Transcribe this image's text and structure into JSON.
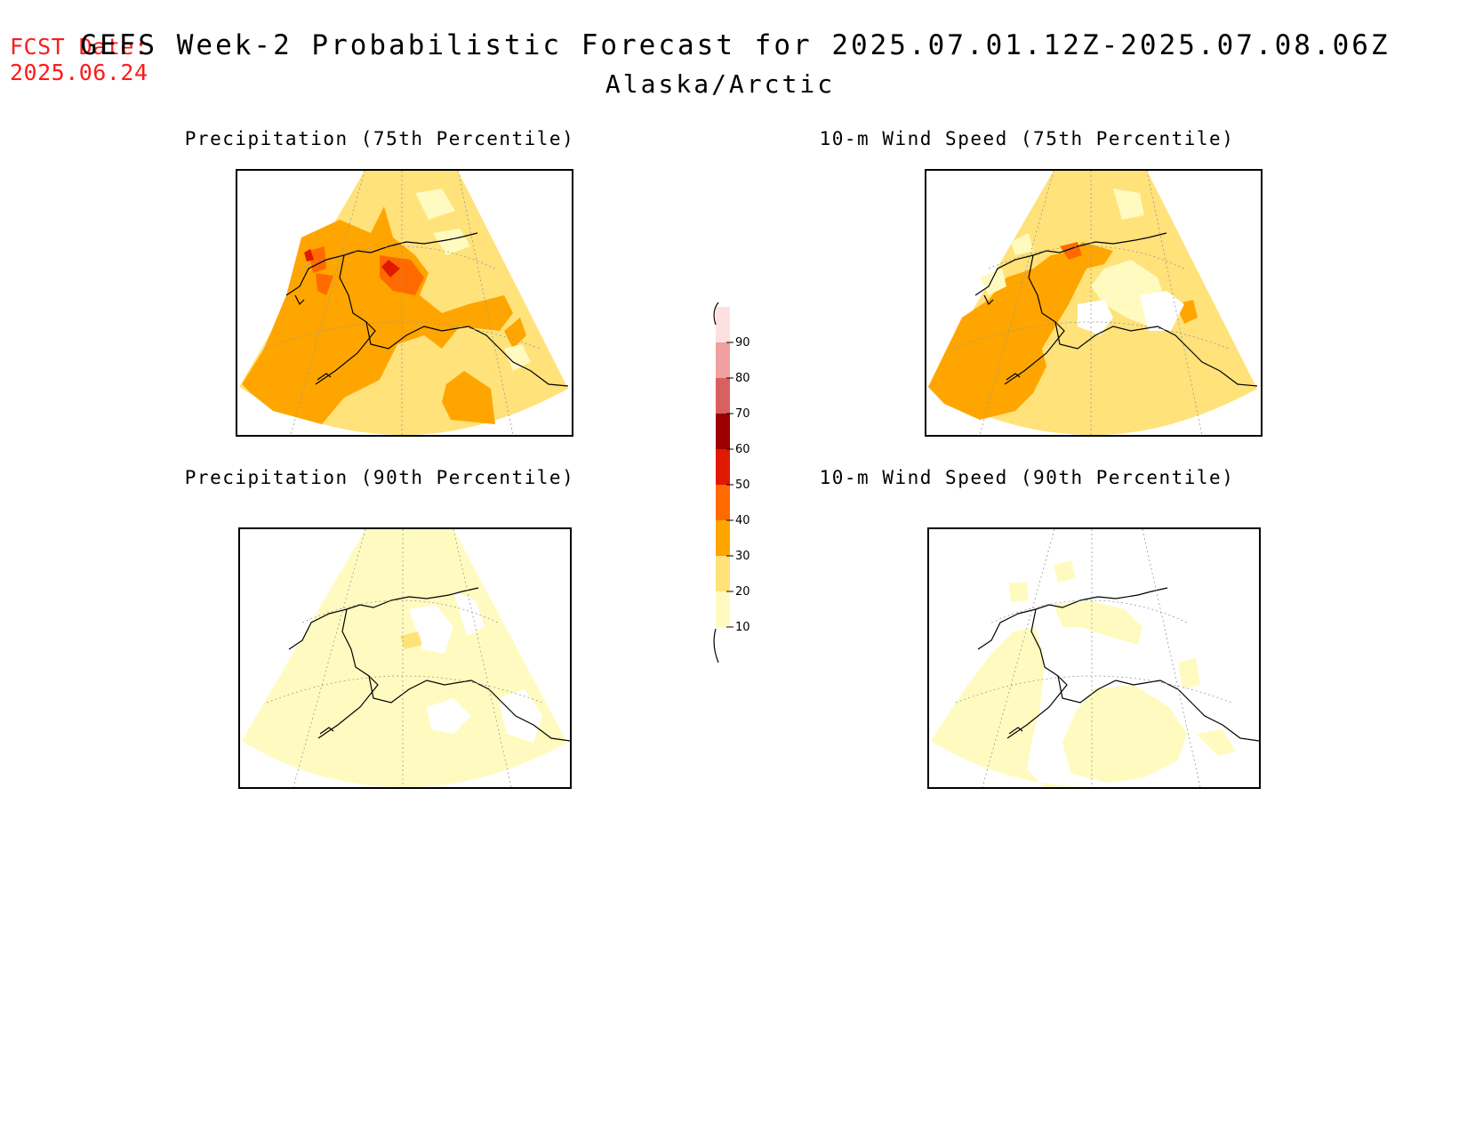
{
  "header": {
    "fcst_label": "FCST Date:",
    "fcst_date": "2025.06.24",
    "title": "GEFS Week-2 Probabilistic Forecast for 2025.07.01.12Z-2025.07.08.06Z",
    "region": "Alaska/Arctic"
  },
  "panels": [
    {
      "key": "p75",
      "title": "Precipitation (75th Percentile)"
    },
    {
      "key": "w75",
      "title": "10-m Wind Speed (75th Percentile)"
    },
    {
      "key": "p90",
      "title": "Precipitation (90th Percentile)"
    },
    {
      "key": "w90",
      "title": "10-m Wind Speed (90th Percentile)"
    }
  ],
  "legend": {
    "levels": [
      "10",
      "20",
      "30",
      "40",
      "50",
      "60",
      "70",
      "80",
      "90"
    ],
    "colors": [
      "#fffbc0",
      "#ffe27a",
      "#ffa500",
      "#ff6a00",
      "#e01a00",
      "#9c0000",
      "#d96060",
      "#f0a0a0",
      "#fde0e0"
    ]
  }
}
